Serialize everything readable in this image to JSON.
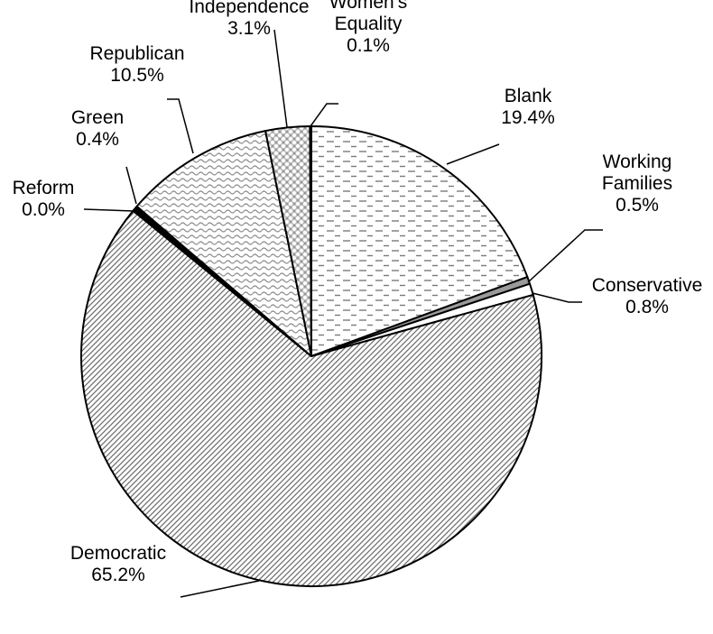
{
  "chart_data": {
    "type": "pie",
    "slices": [
      {
        "label_lines": [
          "Blank",
          "19.4%"
        ],
        "value": 19.4,
        "pattern": "dashes"
      },
      {
        "label_lines": [
          "Working",
          "Families",
          "0.5%"
        ],
        "value": 0.5,
        "pattern": "solid-gray"
      },
      {
        "label_lines": [
          "Conservative",
          "0.8%"
        ],
        "value": 0.8,
        "pattern": "white"
      },
      {
        "label_lines": [
          "Democratic",
          "65.2%"
        ],
        "value": 65.2,
        "pattern": "diagonal"
      },
      {
        "label_lines": [
          "Reform",
          "0.0%"
        ],
        "value": 0.0,
        "pattern": "solid-black"
      },
      {
        "label_lines": [
          "Green",
          "0.4%"
        ],
        "value": 0.4,
        "pattern": "solid-black"
      },
      {
        "label_lines": [
          "Republican",
          "10.5%"
        ],
        "value": 10.5,
        "pattern": "wavy"
      },
      {
        "label_lines": [
          "Independence",
          "3.1%"
        ],
        "value": 3.1,
        "pattern": "dots"
      },
      {
        "label_lines": [
          "Women's",
          "Equality",
          "0.1%"
        ],
        "value": 0.1,
        "pattern": "white"
      }
    ],
    "start": "12 o'clock",
    "direction": "clockwise",
    "legend": "none",
    "labels": "outside with leader lines"
  }
}
